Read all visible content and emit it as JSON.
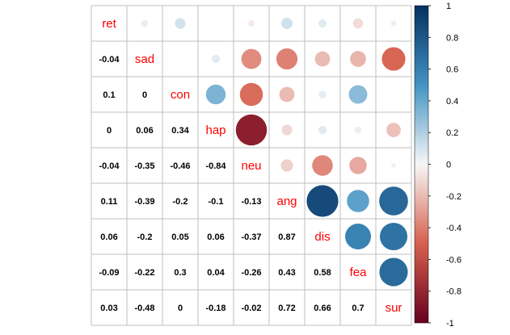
{
  "chart_data": {
    "type": "heatmap",
    "variables": [
      "ret",
      "sad",
      "con",
      "hap",
      "neu",
      "ang",
      "dis",
      "fea",
      "sur"
    ],
    "matrix": [
      [
        1,
        -0.04,
        0.1,
        0,
        -0.04,
        0.11,
        0.06,
        -0.09,
        0.03
      ],
      [
        -0.04,
        1,
        0,
        0.06,
        -0.35,
        -0.39,
        -0.2,
        -0.22,
        -0.48
      ],
      [
        0.1,
        0,
        1,
        0.34,
        -0.46,
        -0.2,
        0.05,
        0.3,
        0
      ],
      [
        0,
        0.06,
        0.34,
        1,
        -0.84,
        -0.1,
        0.06,
        0.04,
        -0.18
      ],
      [
        -0.04,
        -0.35,
        -0.46,
        -0.84,
        1,
        -0.13,
        -0.37,
        -0.26,
        -0.02
      ],
      [
        0.11,
        -0.39,
        -0.2,
        -0.1,
        -0.13,
        1,
        0.87,
        0.43,
        0.72
      ],
      [
        0.06,
        -0.2,
        0.05,
        0.06,
        -0.37,
        0.87,
        1,
        0.58,
        0.66
      ],
      [
        -0.09,
        -0.22,
        0.3,
        0.04,
        -0.26,
        0.43,
        0.58,
        1,
        0.7
      ],
      [
        0.03,
        -0.48,
        0,
        -0.18,
        -0.02,
        0.72,
        0.66,
        0.7,
        1
      ]
    ],
    "lower_display": "number",
    "upper_display": "circle",
    "diagonal_display": "label",
    "colorbar": {
      "ticks": [
        "1",
        "0.8",
        "0.6",
        "0.4",
        "0.2",
        "0",
        "-0.2",
        "-0.4",
        "-0.6",
        "-0.8",
        "-1"
      ],
      "range": [
        -1,
        1
      ]
    },
    "colors": {
      "negative_extreme": "#67001F",
      "negative_mid": "#D6604D",
      "neutral": "#F7F7F7",
      "positive_mid": "#4393C3",
      "positive_extreme": "#053061",
      "label": "#ff0000"
    },
    "grid": true
  }
}
